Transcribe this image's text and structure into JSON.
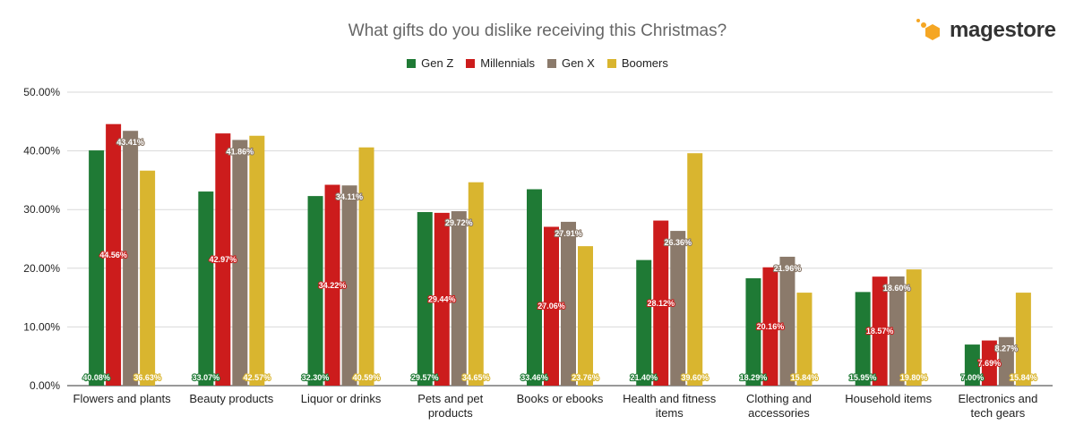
{
  "chart_data": {
    "type": "bar",
    "title": "What gifts do you dislike receiving this Christmas?",
    "xlabel": "",
    "ylabel": "",
    "ylim": [
      0,
      50
    ],
    "yticks": [
      "0.00%",
      "10.00%",
      "20.00%",
      "30.00%",
      "40.00%",
      "50.00%"
    ],
    "grid": true,
    "legend_position": "top",
    "categories": [
      [
        "Flowers and plants"
      ],
      [
        "Beauty products"
      ],
      [
        "Liquor or drinks"
      ],
      [
        "Pets and pet",
        "products"
      ],
      [
        "Books or ebooks"
      ],
      [
        "Health and fitness",
        "items"
      ],
      [
        "Clothing and",
        "accessories"
      ],
      [
        "Household items"
      ],
      [
        "Electronics and",
        "tech gears"
      ]
    ],
    "series": [
      {
        "name": "Gen Z",
        "color": "#1f7a35",
        "values": [
          40.08,
          33.07,
          32.3,
          29.57,
          33.46,
          21.4,
          18.29,
          15.95,
          7.0
        ],
        "labels": [
          "40.08%",
          "33.07%",
          "32.30%",
          "29.57%",
          "33.46%",
          "21.40%",
          "18.29%",
          "15.95%",
          "7.00%"
        ]
      },
      {
        "name": "Millennials",
        "color": "#cc1c1c",
        "values": [
          44.56,
          42.97,
          34.22,
          29.44,
          27.06,
          28.12,
          20.16,
          18.57,
          7.69
        ],
        "labels": [
          "44.56%",
          "42.97%",
          "34.22%",
          "29.44%",
          "27.06%",
          "28.12%",
          "20.16%",
          "18.57%",
          "7.69%"
        ]
      },
      {
        "name": "Gen X",
        "color": "#8b7a6b",
        "values": [
          43.41,
          41.86,
          34.11,
          29.72,
          27.91,
          26.36,
          21.96,
          18.6,
          8.27
        ],
        "labels": [
          "43.41%",
          "41.86%",
          "34.11%",
          "29.72%",
          "27.91%",
          "26.36%",
          "21.96%",
          "18.60%",
          "8.27%"
        ]
      },
      {
        "name": "Boomers",
        "color": "#d9b52f",
        "values": [
          36.63,
          42.57,
          40.59,
          34.65,
          23.76,
          39.6,
          15.84,
          19.8,
          15.84
        ],
        "labels": [
          "36.63%",
          "42.57%",
          "40.59%",
          "34.65%",
          "23.76%",
          "39.60%",
          "15.84%",
          "19.80%",
          "15.84%"
        ]
      }
    ]
  },
  "logo": {
    "text": "magestore",
    "color": "#f5a623"
  }
}
